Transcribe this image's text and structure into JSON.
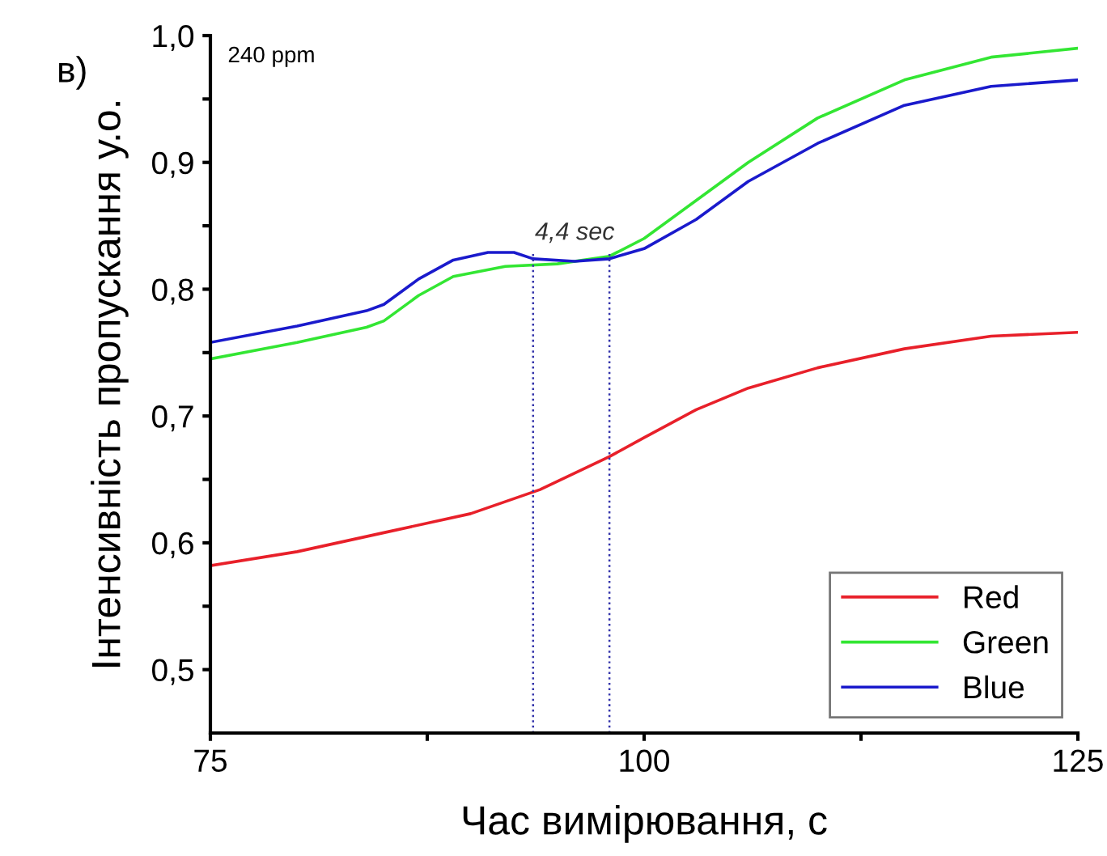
{
  "chart_data": {
    "type": "line",
    "xlabel": "Час вимірювання, с",
    "ylabel": "Інтенсивність пропускання у.о.",
    "annotations": [
      "в)",
      "240 ppm",
      "4,4 sec"
    ],
    "series": [
      {
        "name": "Red",
        "color": "#e8202a",
        "x": [
          75,
          80,
          85,
          90,
          94,
          98,
          100,
          103,
          106,
          110,
          115,
          120,
          125
        ],
        "values": [
          0.582,
          0.593,
          0.608,
          0.623,
          0.642,
          0.668,
          0.683,
          0.705,
          0.722,
          0.738,
          0.753,
          0.763,
          0.766
        ]
      },
      {
        "name": "Green",
        "color": "#33e633",
        "x": [
          75,
          80,
          84,
          85,
          87,
          89,
          92,
          95,
          98,
          100,
          103,
          106,
          110,
          115,
          120,
          125
        ],
        "values": [
          0.745,
          0.758,
          0.77,
          0.775,
          0.795,
          0.81,
          0.818,
          0.82,
          0.826,
          0.84,
          0.87,
          0.9,
          0.935,
          0.965,
          0.983,
          0.99
        ]
      },
      {
        "name": "Blue",
        "color": "#1a1acc",
        "x": [
          75,
          80,
          84,
          85,
          87,
          89,
          91,
          92.5,
          93.6,
          96,
          98,
          100,
          103,
          106,
          110,
          115,
          120,
          125
        ],
        "values": [
          0.758,
          0.771,
          0.783,
          0.788,
          0.808,
          0.823,
          0.829,
          0.829,
          0.824,
          0.822,
          0.824,
          0.832,
          0.855,
          0.885,
          0.915,
          0.945,
          0.96,
          0.965
        ]
      }
    ],
    "xlim": [
      75,
      125
    ],
    "xticks": [
      75,
      {
        "value": 87.5,
        "label": null
      },
      100,
      {
        "value": 112.5,
        "label": null
      },
      125
    ],
    "ylim": [
      0.45,
      1.0
    ],
    "yticks": [
      {
        "value": 0.5,
        "label": "0,5"
      },
      {
        "value": 0.55,
        "label": null
      },
      {
        "value": 0.6,
        "label": "0,6"
      },
      {
        "value": 0.65,
        "label": null
      },
      {
        "value": 0.7,
        "label": "0,7"
      },
      {
        "value": 0.75,
        "label": null
      },
      {
        "value": 0.8,
        "label": "0,8"
      },
      {
        "value": 0.85,
        "label": null
      },
      {
        "value": 0.9,
        "label": "0,9"
      },
      {
        "value": 0.95,
        "label": null
      },
      {
        "value": 1.0,
        "label": "1,0"
      }
    ],
    "ref_lines": [
      {
        "axis": "x",
        "value": 93.6,
        "color": "#3333aa",
        "line_style": "dotted"
      },
      {
        "axis": "x",
        "value": 98.0,
        "color": "#3333aa",
        "line_style": "dotted"
      }
    ],
    "grid": false,
    "legend": "bottom right",
    "line_style": "solid",
    "marker": "none"
  }
}
